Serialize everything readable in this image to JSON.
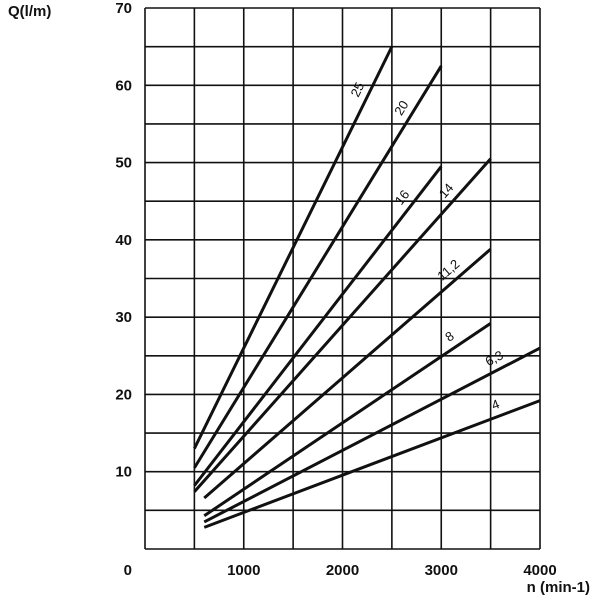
{
  "chart_data": {
    "type": "line",
    "y_label": "Q(l/m)",
    "x_label": "n (min-1)",
    "xlim": [
      0,
      4000
    ],
    "xticks": [
      0,
      1000,
      2000,
      3000,
      4000
    ],
    "ylim": [
      0,
      70
    ],
    "yticks": [
      0,
      10,
      20,
      30,
      40,
      50,
      60,
      70
    ],
    "grid": true,
    "minor_grid": true,
    "series": [
      {
        "name": "25",
        "color": "#111111",
        "x": [
          500,
          2500
        ],
        "values": [
          13,
          65
        ]
      },
      {
        "name": "20",
        "color": "#111111",
        "x": [
          500,
          3000
        ],
        "values": [
          10.5,
          62.5
        ]
      },
      {
        "name": "16",
        "color": "#111111",
        "x": [
          500,
          3000
        ],
        "values": [
          8.2,
          49.5
        ]
      },
      {
        "name": "14",
        "color": "#111111",
        "x": [
          500,
          3500
        ],
        "values": [
          7.4,
          50.5
        ]
      },
      {
        "name": "11,2",
        "color": "#111111",
        "x": [
          600,
          3500
        ],
        "values": [
          6.6,
          38.8
        ]
      },
      {
        "name": "8",
        "color": "#111111",
        "x": [
          600,
          3500
        ],
        "values": [
          4.3,
          29.2
        ]
      },
      {
        "name": "6,3",
        "color": "#111111",
        "x": [
          600,
          4000
        ],
        "values": [
          3.5,
          26
        ]
      },
      {
        "name": "4",
        "color": "#111111",
        "x": [
          600,
          4000
        ],
        "values": [
          2.8,
          19.2
        ]
      }
    ]
  }
}
